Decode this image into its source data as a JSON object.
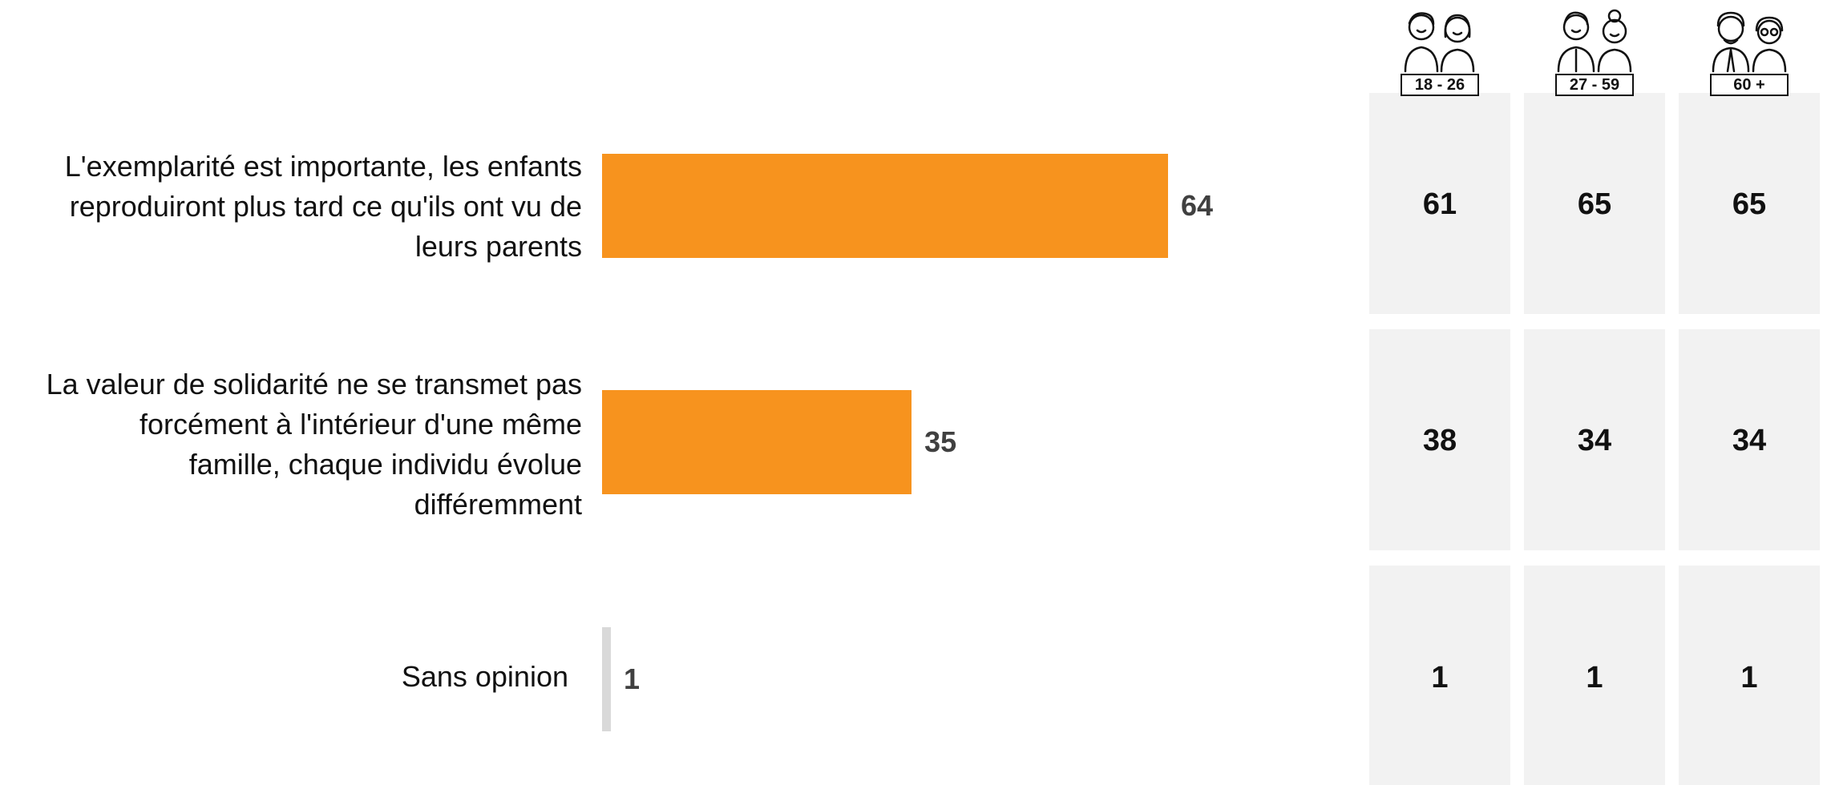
{
  "chart_data": {
    "type": "bar",
    "orientation": "horizontal",
    "categories": [
      "L'exemplarité est importante, les enfants reproduiront plus tard ce qu'ils ont vu de leurs parents",
      "La valeur de solidarité ne se transmet pas forcément à l'intérieur d'une même famille, chaque individu évolue différemment",
      "Sans opinion"
    ],
    "category_lines": [
      [
        "L'exemplarité est importante, les enfants",
        "reproduiront plus tard ce qu'ils ont vu de",
        "leurs parents"
      ],
      [
        "La valeur de solidarité ne se transmet pas",
        "forcément à l'intérieur d'une même",
        "famille, chaque individu évolue",
        "différemment"
      ],
      [
        "Sans opinion"
      ]
    ],
    "values": [
      64,
      35,
      1
    ],
    "colors": [
      "#F7931E",
      "#F7931E",
      "#D9D9D9"
    ],
    "xlim": [
      0,
      100
    ],
    "grid": false,
    "legend": "none",
    "breakdown": {
      "groups": [
        "18 - 26",
        "27 - 59",
        "60 +"
      ],
      "group_icons": [
        "young-couple-icon",
        "adult-couple-icon",
        "senior-couple-icon"
      ],
      "values": [
        [
          61,
          65,
          65
        ],
        [
          38,
          34,
          34
        ],
        [
          1,
          1,
          1
        ]
      ]
    }
  }
}
